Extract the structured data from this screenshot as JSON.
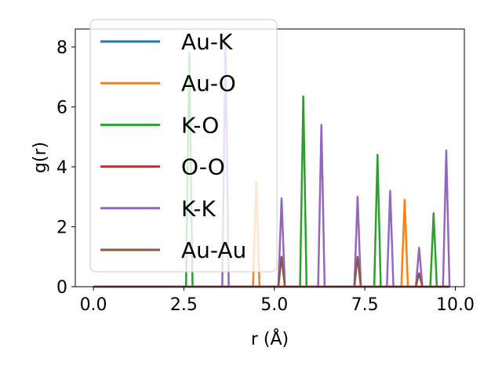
{
  "chart_data": {
    "type": "line",
    "title": "",
    "xlabel": "r (Å)",
    "ylabel": "g(r)",
    "xlim": [
      -0.5,
      10.25
    ],
    "ylim": [
      0,
      8.6
    ],
    "xticks": [
      0.0,
      2.5,
      5.0,
      7.5,
      10.0
    ],
    "xtick_labels": [
      "0.0",
      "2.5",
      "5.0",
      "7.5",
      "10.0"
    ],
    "yticks": [
      0,
      2,
      4,
      6,
      8
    ],
    "ytick_labels": [
      "0",
      "2",
      "4",
      "6",
      "8"
    ],
    "grid": false,
    "legend_position": "top-left",
    "series": [
      {
        "name": "Au-K",
        "color": "#1f77b4",
        "peaks": []
      },
      {
        "name": "Au-O",
        "color": "#ff7f0e",
        "peaks": [
          [
            4.5,
            3.5
          ],
          [
            8.6,
            2.9
          ]
        ]
      },
      {
        "name": "K-O",
        "color": "#2ca02c",
        "peaks": [
          [
            2.65,
            7.8
          ],
          [
            5.8,
            6.35
          ],
          [
            7.85,
            4.4
          ],
          [
            9.4,
            2.45
          ]
        ]
      },
      {
        "name": "O-O",
        "color": "#d62728",
        "peaks": []
      },
      {
        "name": "K-K",
        "color": "#9467bd",
        "peaks": [
          [
            3.65,
            8.2
          ],
          [
            5.2,
            2.95
          ],
          [
            6.3,
            5.4
          ],
          [
            7.3,
            3.0
          ],
          [
            8.2,
            3.2
          ],
          [
            9.0,
            1.3
          ],
          [
            9.75,
            4.55
          ]
        ]
      },
      {
        "name": "Au-Au",
        "color": "#8c564b",
        "peaks": [
          [
            5.2,
            1.0
          ],
          [
            7.3,
            1.0
          ],
          [
            9.0,
            0.45
          ]
        ]
      }
    ],
    "x_range": [
      0.0,
      9.85
    ],
    "peak_halfwidth": 0.09
  }
}
